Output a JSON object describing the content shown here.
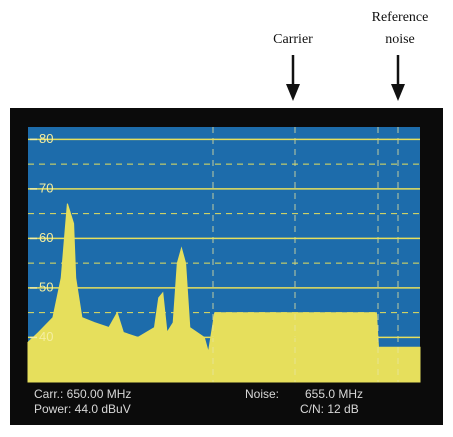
{
  "chart_data": {
    "type": "area",
    "annotations": [
      "Carrier",
      "Reference",
      "noise"
    ],
    "readouts": [
      "Carr.: 650.00 MHz",
      "Power: 44.0 dBuV",
      "Noise:",
      "655.0  MHz",
      "C/N:  12 dB"
    ],
    "x": [
      637.1,
      637.6,
      638.3,
      638.7,
      638.9,
      639.0,
      639.3,
      639.4,
      639.7,
      640.3,
      641.0,
      641.4,
      641.7,
      642.4,
      643.2,
      643.4,
      643.6,
      643.8,
      644.1,
      644.3,
      644.5,
      644.7,
      644.9,
      645.6,
      645.8,
      646.1,
      647.8,
      650.0,
      652.1,
      653.9,
      654.0,
      655.1,
      656.0
    ],
    "values": [
      39,
      41,
      44,
      52,
      62,
      67,
      63,
      52,
      44,
      43,
      42,
      45,
      41,
      40,
      42,
      48,
      49,
      41,
      43,
      55,
      58,
      55,
      42,
      40,
      37,
      45,
      45,
      45,
      45,
      45,
      38,
      38,
      38
    ],
    "color": "#e6df5c",
    "xlim": [
      637.1,
      656.0
    ],
    "ylim": [
      31,
      82.5
    ],
    "yticks": [
      40,
      50,
      60,
      70,
      80
    ],
    "grid": true
  }
}
